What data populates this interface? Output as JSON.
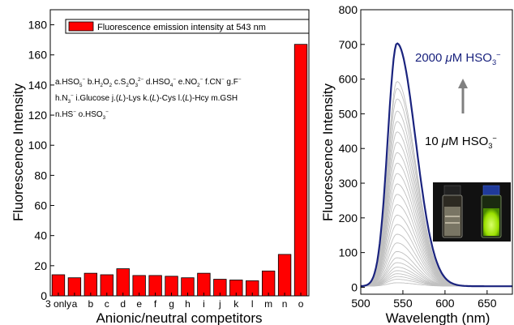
{
  "chart_data": [
    {
      "type": "bar",
      "xlabel": "Anionic/neutral competitors",
      "ylabel": "Fluorescence Intensity",
      "ylim": [
        0,
        190
      ],
      "yticks": [
        0,
        20,
        40,
        60,
        80,
        100,
        120,
        140,
        160,
        180
      ],
      "categories": [
        "3 only",
        "a",
        "b",
        "c",
        "d",
        "e",
        "f",
        "g",
        "h",
        "i",
        "j",
        "k",
        "l",
        "m",
        "n",
        "o"
      ],
      "values": [
        14,
        12,
        15,
        14,
        18,
        13.5,
        13.5,
        13,
        12,
        15,
        11,
        10.5,
        10,
        16.5,
        27.5,
        167
      ],
      "legend": {
        "label": "Fluorescence emission intensity at 543 nm",
        "position": "top",
        "color": "#ff0000"
      },
      "annotation_lines": [
        [
          {
            "t": "a.HSO"
          },
          {
            "t": "5",
            "sub": true
          },
          {
            "t": "−",
            "sup": true
          },
          {
            "t": "  b.H"
          },
          {
            "t": "2",
            "sub": true
          },
          {
            "t": "O"
          },
          {
            "t": "2",
            "sub": true
          },
          {
            "t": "  c.S"
          },
          {
            "t": "2",
            "sub": true
          },
          {
            "t": "O"
          },
          {
            "t": "3",
            "sub": true
          },
          {
            "t": "2−",
            "sup": true
          },
          {
            "t": "  d.HSO"
          },
          {
            "t": "4",
            "sub": true
          },
          {
            "t": "−",
            "sup": true
          },
          {
            "t": "  e.NO"
          },
          {
            "t": "2",
            "sub": true
          },
          {
            "t": "−",
            "sup": true
          },
          {
            "t": "  f.CN"
          },
          {
            "t": "−",
            "sup": true
          },
          {
            "t": "  g.F"
          },
          {
            "t": "−",
            "sup": true
          }
        ],
        [
          {
            "t": "h.N"
          },
          {
            "t": "3",
            "sub": true
          },
          {
            "t": "−",
            "sup": true
          },
          {
            "t": "  i.Glucose  j.("
          },
          {
            "t": "L",
            "i": true
          },
          {
            "t": ")-Lys  k.("
          },
          {
            "t": "L",
            "i": true
          },
          {
            "t": ")-Cys  l.("
          },
          {
            "t": "L",
            "i": true
          },
          {
            "t": ")-Hcy  m.GSH"
          }
        ],
        [
          {
            "t": "n.HS"
          },
          {
            "t": "−",
            "sup": true
          },
          {
            "t": "  o.HSO"
          },
          {
            "t": "3",
            "sub": true
          },
          {
            "t": "−",
            "sup": true
          }
        ]
      ]
    },
    {
      "type": "line",
      "xlabel": "Wavelength (nm)",
      "ylabel": "Fluorescence Intensity",
      "xlim": [
        500,
        680
      ],
      "ylim": [
        -20,
        800
      ],
      "xticks": [
        500,
        550,
        600,
        650
      ],
      "yticks": [
        0,
        100,
        200,
        300,
        400,
        500,
        600,
        700,
        800
      ],
      "peak_wavelength": 543,
      "series_peaks": [
        10,
        20,
        28,
        36,
        45,
        55,
        68,
        82,
        100,
        125,
        150,
        178,
        205,
        235,
        265,
        295,
        325,
        355,
        385,
        415,
        445,
        475,
        505,
        540,
        570,
        590
      ],
      "highlight_peak": 700,
      "baseline": 3,
      "series_color": "#c0c0c0",
      "highlight_color": "#1a237e",
      "arrow_color": "#808080",
      "label_top": [
        {
          "t": "2000 "
        },
        {
          "t": "μ",
          "i": true
        },
        {
          "t": "M HSO"
        },
        {
          "t": "3",
          "sub": true
        },
        {
          "t": "−",
          "sup": true
        }
      ],
      "label_bottom": [
        {
          "t": "10 "
        },
        {
          "t": "μ",
          "i": true
        },
        {
          "t": "M HSO"
        },
        {
          "t": "3",
          "sub": true
        },
        {
          "t": "−",
          "sup": true
        }
      ]
    }
  ]
}
